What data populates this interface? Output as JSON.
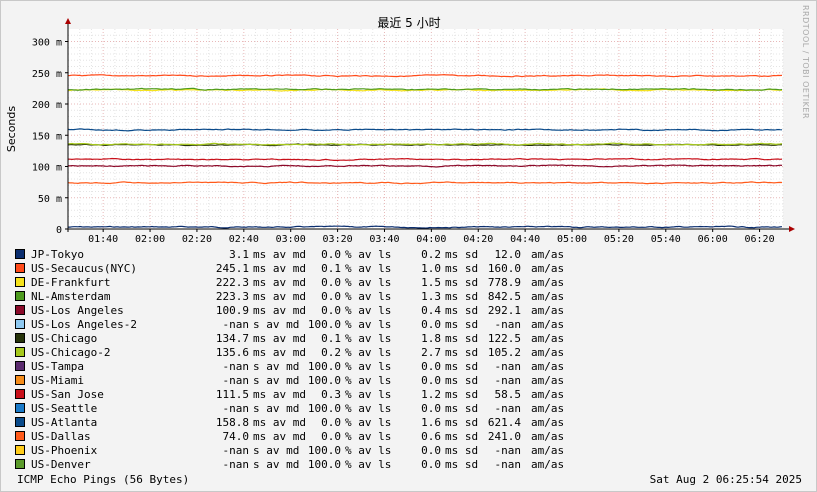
{
  "title": "最近 5 小时",
  "ylabel": "Seconds",
  "side_credit": "RRDTOOL / TOBI OETIKER",
  "footer": {
    "left": "ICMP Echo Pings (56 Bytes)",
    "right": "Sat Aug  2 06:25:54 2025"
  },
  "legend_units": {
    "avg": "ms",
    "nan": "s",
    "av": "av md",
    "ls": "% av ls",
    "sd": "ms sd",
    "amas": "am/as"
  },
  "legend": [
    {
      "name": "JP-Tokyo",
      "color": "#0b2e6f",
      "avg": "3.1",
      "unit": "ms",
      "loss": "0.0",
      "sd": "0.2",
      "amas": "12.0"
    },
    {
      "name": "US-Secaucus(NYC)",
      "color": "#ff4a1a",
      "avg": "245.1",
      "unit": "ms",
      "loss": "0.1",
      "sd": "1.0",
      "amas": "160.0"
    },
    {
      "name": "DE-Frankfurt",
      "color": "#f5e21b",
      "avg": "222.3",
      "unit": "ms",
      "loss": "0.0",
      "sd": "1.5",
      "amas": "778.9"
    },
    {
      "name": "NL-Amsterdam",
      "color": "#4d9a1e",
      "avg": "223.3",
      "unit": "ms",
      "loss": "0.0",
      "sd": "1.3",
      "amas": "842.5"
    },
    {
      "name": "US-Los Angeles",
      "color": "#8b0a2a",
      "avg": "100.9",
      "unit": "ms",
      "loss": "0.0",
      "sd": "0.4",
      "amas": "292.1"
    },
    {
      "name": "US-Los Angeles-2",
      "color": "#8ec8f0",
      "avg": "-nan",
      "unit": "s",
      "loss": "100.0",
      "sd": "0.0",
      "amas": "-nan"
    },
    {
      "name": "US-Chicago",
      "color": "#26330a",
      "avg": "134.7",
      "unit": "ms",
      "loss": "0.1",
      "sd": "1.8",
      "amas": "122.5"
    },
    {
      "name": "US-Chicago-2",
      "color": "#a5c81b",
      "avg": "135.6",
      "unit": "ms",
      "loss": "0.2",
      "sd": "2.7",
      "amas": "105.2"
    },
    {
      "name": "US-Tampa",
      "color": "#5a2a6e",
      "avg": "-nan",
      "unit": "s",
      "loss": "100.0",
      "sd": "0.0",
      "amas": "-nan"
    },
    {
      "name": "US-Miami",
      "color": "#f58c1a",
      "avg": "-nan",
      "unit": "s",
      "loss": "100.0",
      "sd": "0.0",
      "amas": "-nan"
    },
    {
      "name": "US-San Jose",
      "color": "#c8101a",
      "avg": "111.5",
      "unit": "ms",
      "loss": "0.3",
      "sd": "1.2",
      "amas": "58.5"
    },
    {
      "name": "US-Seattle",
      "color": "#1a7ac8",
      "avg": "-nan",
      "unit": "s",
      "loss": "100.0",
      "sd": "0.0",
      "amas": "-nan"
    },
    {
      "name": "US-Atlanta",
      "color": "#0a4a8a",
      "avg": "158.8",
      "unit": "ms",
      "loss": "0.0",
      "sd": "1.6",
      "amas": "621.4"
    },
    {
      "name": "US-Dallas",
      "color": "#ff5a1a",
      "avg": "74.0",
      "unit": "ms",
      "loss": "0.0",
      "sd": "0.6",
      "amas": "241.0"
    },
    {
      "name": "US-Phoenix",
      "color": "#ffcc1a",
      "avg": "-nan",
      "unit": "s",
      "loss": "100.0",
      "sd": "0.0",
      "amas": "-nan"
    },
    {
      "name": "US-Denver",
      "color": "#5a9a2a",
      "avg": "-nan",
      "unit": "s",
      "loss": "100.0",
      "sd": "0.0",
      "amas": "-nan"
    }
  ],
  "chart_data": {
    "type": "line",
    "title": "最近 5 小时",
    "ylabel": "Seconds",
    "xlabel": "",
    "ylim": [
      0,
      0.32
    ],
    "xlim": [
      "01:25",
      "06:30"
    ],
    "y_ticks": [
      "0",
      "50 m",
      "100 m",
      "150 m",
      "200 m",
      "250 m",
      "300 m"
    ],
    "y_tick_values": [
      0,
      0.05,
      0.1,
      0.15,
      0.2,
      0.25,
      0.3
    ],
    "x_ticks": [
      "01:40",
      "02:00",
      "02:20",
      "02:40",
      "03:00",
      "03:20",
      "03:40",
      "04:00",
      "04:20",
      "04:40",
      "05:00",
      "05:20",
      "05:40",
      "06:00",
      "06:20"
    ],
    "grid": true,
    "series": [
      {
        "name": "JP-Tokyo",
        "color": "#0b2e6f",
        "y": 0.0031
      },
      {
        "name": "US-Secaucus(NYC)",
        "color": "#ff4a1a",
        "y": 0.2451
      },
      {
        "name": "DE-Frankfurt",
        "color": "#f5e21b",
        "y": 0.2223
      },
      {
        "name": "NL-Amsterdam",
        "color": "#4d9a1e",
        "y": 0.2233
      },
      {
        "name": "US-Los Angeles",
        "color": "#8b0a2a",
        "y": 0.1009
      },
      {
        "name": "US-Chicago",
        "color": "#26330a",
        "y": 0.1347
      },
      {
        "name": "US-Chicago-2",
        "color": "#a5c81b",
        "y": 0.1356
      },
      {
        "name": "US-San Jose",
        "color": "#c8101a",
        "y": 0.1115
      },
      {
        "name": "US-Atlanta",
        "color": "#0a4a8a",
        "y": 0.1588
      },
      {
        "name": "US-Dallas",
        "color": "#ff5a1a",
        "y": 0.074
      }
    ]
  }
}
